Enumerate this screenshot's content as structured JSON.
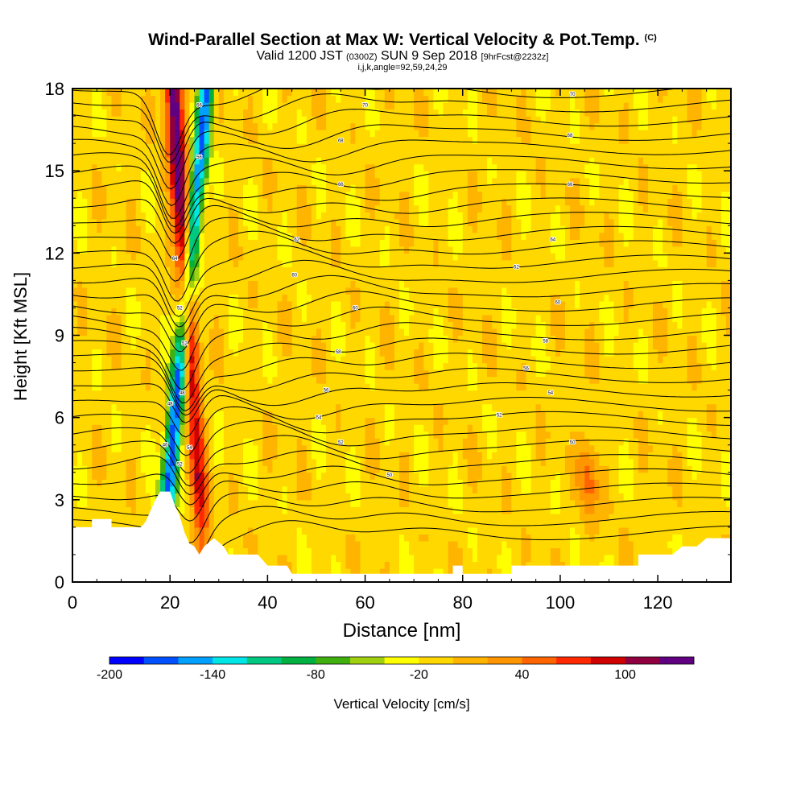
{
  "chart_data": {
    "type": "heatmap",
    "title": "Wind-Parallel Section at Max W: Vertical Velocity & Pot.Temp.",
    "title_tag": "(C)",
    "subtitle_prefix": "Valid 1200 JST",
    "subtitle_time_small": "(0300Z)",
    "subtitle_date": "SUN 9 Sep 2018",
    "subtitle_fcst_small": "[9hrFcst@2232z]",
    "subtitle2": "i,j,k,angle=92,59,24,29",
    "xlabel": "Distance [nm]",
    "ylabel": "Height [Kft MSL]",
    "x_ticks": [
      "0",
      "20",
      "40",
      "60",
      "80",
      "100",
      "120"
    ],
    "y_ticks": [
      "0",
      "3",
      "6",
      "9",
      "12",
      "15",
      "18"
    ],
    "xlim": [
      0,
      135
    ],
    "ylim": [
      0,
      18
    ],
    "colorbar_label": "Vertical Velocity [cm/s]",
    "colorbar_ticks": [
      "-200",
      "-140",
      "-80",
      "-20",
      "40",
      "100"
    ],
    "colorbar_levels": [
      -200,
      -180,
      -160,
      -140,
      -120,
      -100,
      -80,
      -60,
      -40,
      -20,
      0,
      20,
      40,
      60,
      80,
      100,
      120
    ],
    "colorbar_colors": [
      "#0000ff",
      "#0050ff",
      "#00a0ff",
      "#00e6e6",
      "#00c880",
      "#00b040",
      "#40b010",
      "#a0d010",
      "#ffff00",
      "#ffd800",
      "#ffb400",
      "#ff9600",
      "#ff6400",
      "#ff2800",
      "#d00000",
      "#900040",
      "#600080"
    ],
    "background_level_color": "#ffd800",
    "terrain_color": "#ffffff",
    "grid": false,
    "series": [
      {
        "name": "Vertical Velocity",
        "kind": "filled-contours"
      },
      {
        "name": "Pot.Temp.",
        "kind": "contour-lines"
      }
    ],
    "features": {
      "updraft_core_max_cms": 120,
      "downdraft_core_min_cms": -160,
      "updraft_x_nm_at_6kft": 25,
      "updraft_x_nm_at_17kft": 21,
      "downdraft_x_nm_at_6kft": 21,
      "downdraft_x_nm_at_17kft": 27,
      "secondary_updraft_x_nm": 106,
      "secondary_updraft_y_kft": 3.8
    },
    "terrain_profile_kft": [
      [
        0,
        2.0
      ],
      [
        4,
        2.0
      ],
      [
        4,
        2.3
      ],
      [
        8,
        2.3
      ],
      [
        8,
        2.0
      ],
      [
        14,
        2.0
      ],
      [
        15,
        2.2
      ],
      [
        16,
        2.6
      ],
      [
        17,
        3.0
      ],
      [
        18,
        3.3
      ],
      [
        20,
        3.3
      ],
      [
        21,
        2.8
      ],
      [
        22,
        2.4
      ],
      [
        23,
        1.8
      ],
      [
        24,
        1.4
      ],
      [
        25,
        1.3
      ],
      [
        26,
        1.0
      ],
      [
        27,
        1.3
      ],
      [
        29,
        1.6
      ],
      [
        31,
        1.3
      ],
      [
        32,
        1.0
      ],
      [
        38,
        1.0
      ],
      [
        40,
        0.6
      ],
      [
        44,
        0.6
      ],
      [
        45,
        0.3
      ],
      [
        78,
        0.3
      ],
      [
        78,
        0.6
      ],
      [
        80,
        0.6
      ],
      [
        80,
        0.3
      ],
      [
        90,
        0.3
      ],
      [
        90,
        0.6
      ],
      [
        104,
        0.6
      ],
      [
        105,
        0.6
      ],
      [
        116,
        0.6
      ],
      [
        116,
        1.0
      ],
      [
        123,
        1.0
      ],
      [
        125,
        1.3
      ],
      [
        128,
        1.3
      ],
      [
        130,
        1.6
      ],
      [
        135,
        1.6
      ]
    ],
    "contour_labels": [
      {
        "text": "66",
        "x": 26.0,
        "y": 17.4
      },
      {
        "text": "56",
        "x": 26.0,
        "y": 15.5
      },
      {
        "text": "64",
        "x": 21.0,
        "y": 11.8
      },
      {
        "text": "52",
        "x": 22.0,
        "y": 10.0
      },
      {
        "text": "52",
        "x": 23.0,
        "y": 8.7
      },
      {
        "text": "48",
        "x": 22.5,
        "y": 6.9
      },
      {
        "text": "48",
        "x": 20.0,
        "y": 6.5
      },
      {
        "text": "46",
        "x": 19.0,
        "y": 5.0
      },
      {
        "text": "54",
        "x": 24.0,
        "y": 4.9
      },
      {
        "text": "52",
        "x": 22.0,
        "y": 4.3
      },
      {
        "text": "70",
        "x": 60.0,
        "y": 17.4
      },
      {
        "text": "68",
        "x": 55.0,
        "y": 16.1
      },
      {
        "text": "66",
        "x": 55.0,
        "y": 14.5
      },
      {
        "text": "62",
        "x": 46.0,
        "y": 12.5
      },
      {
        "text": "60",
        "x": 45.5,
        "y": 11.2
      },
      {
        "text": "60",
        "x": 58.0,
        "y": 10.0
      },
      {
        "text": "58",
        "x": 54.5,
        "y": 8.4
      },
      {
        "text": "56",
        "x": 52.0,
        "y": 7.0
      },
      {
        "text": "54",
        "x": 50.5,
        "y": 6.0
      },
      {
        "text": "52",
        "x": 55.0,
        "y": 5.1
      },
      {
        "text": "50",
        "x": 65.0,
        "y": 3.9
      },
      {
        "text": "70",
        "x": 102.5,
        "y": 17.8
      },
      {
        "text": "68",
        "x": 102.0,
        "y": 16.3
      },
      {
        "text": "66",
        "x": 102.0,
        "y": 14.5
      },
      {
        "text": "64",
        "x": 98.5,
        "y": 12.5
      },
      {
        "text": "62",
        "x": 91.0,
        "y": 11.5
      },
      {
        "text": "60",
        "x": 99.5,
        "y": 10.2
      },
      {
        "text": "58",
        "x": 97.0,
        "y": 8.8
      },
      {
        "text": "56",
        "x": 93.0,
        "y": 7.8
      },
      {
        "text": "54",
        "x": 98.0,
        "y": 6.9
      },
      {
        "text": "52",
        "x": 87.5,
        "y": 6.1
      },
      {
        "text": "50",
        "x": 102.5,
        "y": 5.1
      }
    ]
  }
}
